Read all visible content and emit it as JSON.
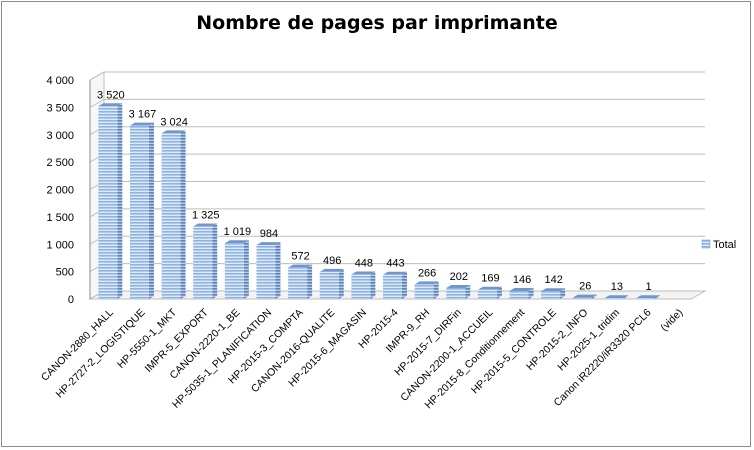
{
  "chart_data": {
    "type": "bar",
    "title": "Nombre de pages par imprimante",
    "xlabel": "",
    "ylabel": "",
    "ylim": [
      0,
      4000
    ],
    "yticks": [
      "0",
      "500",
      "1 000",
      "1 500",
      "2 000",
      "2 500",
      "3 000",
      "3 500",
      "4 000"
    ],
    "legend": {
      "position": "right"
    },
    "grid": true,
    "series": [
      {
        "name": "Total",
        "color": "#8eb4e3",
        "values": [
          3520,
          3167,
          3024,
          1325,
          1019,
          984,
          572,
          496,
          448,
          443,
          266,
          202,
          169,
          146,
          142,
          26,
          13,
          1,
          null
        ],
        "value_labels": [
          "3 520",
          "3 167",
          "3 024",
          "1 325",
          "1 019",
          "984",
          "572",
          "496",
          "448",
          "443",
          "266",
          "202",
          "169",
          "146",
          "142",
          "26",
          "13",
          "1",
          ""
        ]
      }
    ],
    "categories": [
      "CANON-2880_HALL",
      "HP-2727-2_LOGISTIQUE",
      "HP-5550-1_MKT",
      "IMPR-5_EXPORT",
      "CANON-2220-1_BE",
      "HP-5035-1_PLANIFICATION",
      "HP-2015-3_COMPTA",
      "CANON-2016-QUALITE",
      "HP-2015-6_MAGASIN",
      "HP-2015-4",
      "IMPR-9_RH",
      "HP-2015-7_DIRFin",
      "CANON-2200-1_ACCUEIL",
      "HP-2015-8_Conditionnement",
      "HP-2015-5_CONTROLE",
      "HP-2015-2_INFO",
      "HP-2025-1_tridim",
      "Canon iR2220/iR3320 PCL6",
      "(vide)"
    ]
  }
}
